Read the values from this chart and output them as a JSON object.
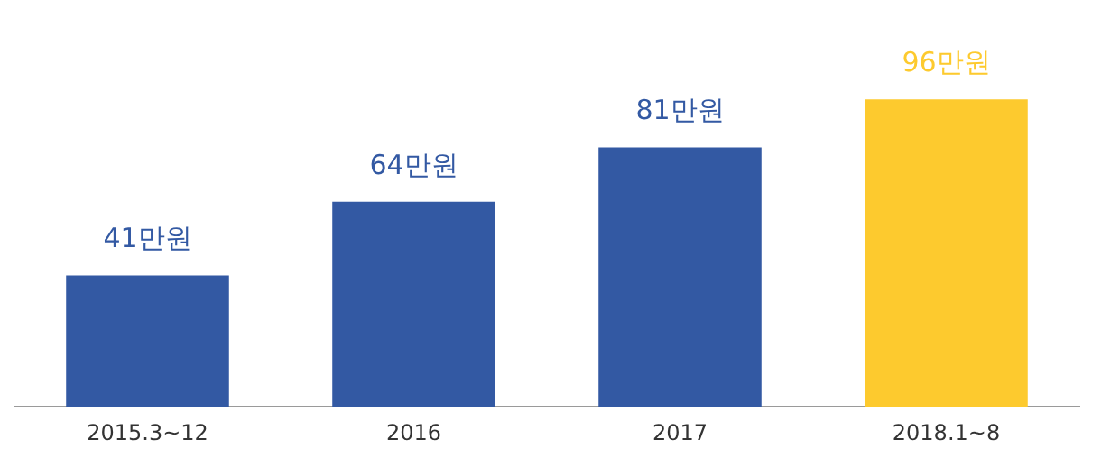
{
  "chart_data": {
    "type": "bar",
    "categories": [
      "2015.3~12",
      "2016",
      "2017",
      "2018.1~8"
    ],
    "values": [
      41,
      64,
      81,
      96
    ],
    "colors": [
      "#3359a3",
      "#3359a3",
      "#3359a3",
      "#fdca2e"
    ],
    "value_labels": [
      "41만원",
      "64만원",
      "81만원",
      "96만원"
    ],
    "grid": false,
    "legend": false
  }
}
